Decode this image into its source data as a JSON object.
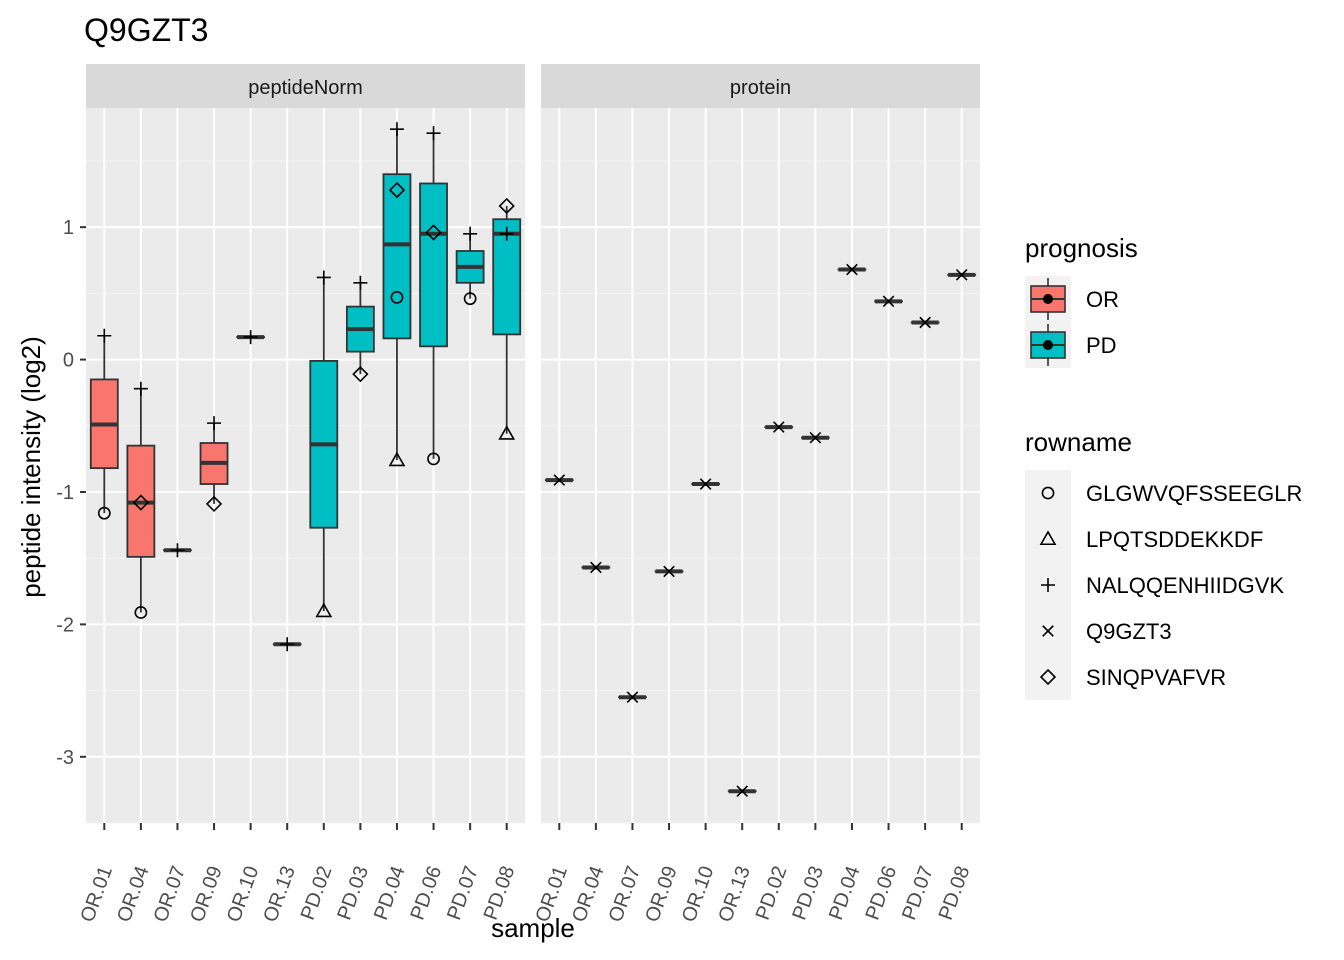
{
  "chart_data": {
    "type": "boxplot",
    "title": "Q9GZT3",
    "xlabel": "sample",
    "ylabel": "peptide intensity (log2)",
    "ylim": [
      -3.5,
      1.75
    ],
    "yticks": [
      -3,
      -2,
      -1,
      0,
      1
    ],
    "grid": true,
    "legend_placement": "right",
    "samples": [
      "OR.01",
      "OR.04",
      "OR.07",
      "OR.09",
      "OR.10",
      "OR.13",
      "PD.02",
      "PD.03",
      "PD.04",
      "PD.06",
      "PD.07",
      "PD.08"
    ],
    "facets": [
      {
        "name": "peptideNorm",
        "boxes": [
          {
            "sample": "OR.01",
            "prognosis": "OR",
            "lower_whisker": -1.16,
            "q1": -0.82,
            "median": -0.49,
            "q3": -0.15,
            "upper_whisker": 0.18
          },
          {
            "sample": "OR.04",
            "prognosis": "OR",
            "lower_whisker": -1.91,
            "q1": -1.49,
            "median": -1.08,
            "q3": -0.65,
            "upper_whisker": -0.22
          },
          {
            "sample": "OR.07",
            "prognosis": "OR",
            "lower_whisker": -1.44,
            "q1": -1.44,
            "median": -1.44,
            "q3": -1.44,
            "upper_whisker": -1.44
          },
          {
            "sample": "OR.09",
            "prognosis": "OR",
            "lower_whisker": -1.09,
            "q1": -0.94,
            "median": -0.78,
            "q3": -0.63,
            "upper_whisker": -0.48
          },
          {
            "sample": "OR.10",
            "prognosis": "OR",
            "lower_whisker": 0.17,
            "q1": 0.17,
            "median": 0.17,
            "q3": 0.17,
            "upper_whisker": 0.17
          },
          {
            "sample": "OR.13",
            "prognosis": "OR",
            "lower_whisker": -2.15,
            "q1": -2.15,
            "median": -2.15,
            "q3": -2.15,
            "upper_whisker": -2.15
          },
          {
            "sample": "PD.02",
            "prognosis": "PD",
            "lower_whisker": -1.9,
            "q1": -1.27,
            "median": -0.64,
            "q3": -0.01,
            "upper_whisker": 0.62
          },
          {
            "sample": "PD.03",
            "prognosis": "PD",
            "lower_whisker": -0.11,
            "q1": 0.06,
            "median": 0.23,
            "q3": 0.4,
            "upper_whisker": 0.58
          },
          {
            "sample": "PD.04",
            "prognosis": "PD",
            "lower_whisker": -0.76,
            "q1": 0.16,
            "median": 0.87,
            "q3": 1.4,
            "upper_whisker": 1.74
          },
          {
            "sample": "PD.06",
            "prognosis": "PD",
            "lower_whisker": -0.75,
            "q1": 0.1,
            "median": 0.95,
            "q3": 1.33,
            "upper_whisker": 1.71
          },
          {
            "sample": "PD.07",
            "prognosis": "PD",
            "lower_whisker": 0.46,
            "q1": 0.58,
            "median": 0.7,
            "q3": 0.82,
            "upper_whisker": 0.95
          },
          {
            "sample": "PD.08",
            "prognosis": "PD",
            "lower_whisker": -0.56,
            "q1": 0.19,
            "median": 0.95,
            "q3": 1.06,
            "upper_whisker": 1.16
          }
        ],
        "points": [
          {
            "sample": "OR.01",
            "rowname": "NALQQENHIIDGVK",
            "y": 0.18
          },
          {
            "sample": "OR.01",
            "rowname": "GLGWVQFSSEEGLR",
            "y": -1.16
          },
          {
            "sample": "OR.04",
            "rowname": "NALQQENHIIDGVK",
            "y": -0.22
          },
          {
            "sample": "OR.04",
            "rowname": "SINQPVAFVR",
            "y": -1.08
          },
          {
            "sample": "OR.04",
            "rowname": "GLGWVQFSSEEGLR",
            "y": -1.91
          },
          {
            "sample": "OR.07",
            "rowname": "NALQQENHIIDGVK",
            "y": -1.44
          },
          {
            "sample": "OR.09",
            "rowname": "NALQQENHIIDGVK",
            "y": -0.48
          },
          {
            "sample": "OR.09",
            "rowname": "SINQPVAFVR",
            "y": -1.09
          },
          {
            "sample": "OR.10",
            "rowname": "NALQQENHIIDGVK",
            "y": 0.17
          },
          {
            "sample": "OR.13",
            "rowname": "NALQQENHIIDGVK",
            "y": -2.15
          },
          {
            "sample": "PD.02",
            "rowname": "NALQQENHIIDGVK",
            "y": 0.62
          },
          {
            "sample": "PD.02",
            "rowname": "LPQTSDDEKKDF",
            "y": -1.9
          },
          {
            "sample": "PD.03",
            "rowname": "NALQQENHIIDGVK",
            "y": 0.58
          },
          {
            "sample": "PD.03",
            "rowname": "SINQPVAFVR",
            "y": -0.11
          },
          {
            "sample": "PD.04",
            "rowname": "NALQQENHIIDGVK",
            "y": 1.74
          },
          {
            "sample": "PD.04",
            "rowname": "SINQPVAFVR",
            "y": 1.28
          },
          {
            "sample": "PD.04",
            "rowname": "GLGWVQFSSEEGLR",
            "y": 0.47
          },
          {
            "sample": "PD.04",
            "rowname": "LPQTSDDEKKDF",
            "y": -0.76
          },
          {
            "sample": "PD.06",
            "rowname": "NALQQENHIIDGVK",
            "y": 1.71
          },
          {
            "sample": "PD.06",
            "rowname": "SINQPVAFVR",
            "y": 0.96
          },
          {
            "sample": "PD.06",
            "rowname": "GLGWVQFSSEEGLR",
            "y": -0.75
          },
          {
            "sample": "PD.07",
            "rowname": "NALQQENHIIDGVK",
            "y": 0.95
          },
          {
            "sample": "PD.07",
            "rowname": "GLGWVQFSSEEGLR",
            "y": 0.46
          },
          {
            "sample": "PD.08",
            "rowname": "SINQPVAFVR",
            "y": 1.16
          },
          {
            "sample": "PD.08",
            "rowname": "NALQQENHIIDGVK",
            "y": 0.95
          },
          {
            "sample": "PD.08",
            "rowname": "LPQTSDDEKKDF",
            "y": -0.56
          }
        ]
      },
      {
        "name": "protein",
        "boxes": [
          {
            "sample": "OR.01",
            "prognosis": "OR",
            "lower_whisker": -0.91,
            "q1": -0.91,
            "median": -0.91,
            "q3": -0.91,
            "upper_whisker": -0.91
          },
          {
            "sample": "OR.04",
            "prognosis": "OR",
            "lower_whisker": -1.57,
            "q1": -1.57,
            "median": -1.57,
            "q3": -1.57,
            "upper_whisker": -1.57
          },
          {
            "sample": "OR.07",
            "prognosis": "OR",
            "lower_whisker": -2.55,
            "q1": -2.55,
            "median": -2.55,
            "q3": -2.55,
            "upper_whisker": -2.55
          },
          {
            "sample": "OR.09",
            "prognosis": "OR",
            "lower_whisker": -1.6,
            "q1": -1.6,
            "median": -1.6,
            "q3": -1.6,
            "upper_whisker": -1.6
          },
          {
            "sample": "OR.10",
            "prognosis": "OR",
            "lower_whisker": -0.94,
            "q1": -0.94,
            "median": -0.94,
            "q3": -0.94,
            "upper_whisker": -0.94
          },
          {
            "sample": "OR.13",
            "prognosis": "OR",
            "lower_whisker": -3.26,
            "q1": -3.26,
            "median": -3.26,
            "q3": -3.26,
            "upper_whisker": -3.26
          },
          {
            "sample": "PD.02",
            "prognosis": "PD",
            "lower_whisker": -0.51,
            "q1": -0.51,
            "median": -0.51,
            "q3": -0.51,
            "upper_whisker": -0.51
          },
          {
            "sample": "PD.03",
            "prognosis": "PD",
            "lower_whisker": -0.59,
            "q1": -0.59,
            "median": -0.59,
            "q3": -0.59,
            "upper_whisker": -0.59
          },
          {
            "sample": "PD.04",
            "prognosis": "PD",
            "lower_whisker": 0.68,
            "q1": 0.68,
            "median": 0.68,
            "q3": 0.68,
            "upper_whisker": 0.68
          },
          {
            "sample": "PD.06",
            "prognosis": "PD",
            "lower_whisker": 0.44,
            "q1": 0.44,
            "median": 0.44,
            "q3": 0.44,
            "upper_whisker": 0.44
          },
          {
            "sample": "PD.07",
            "prognosis": "PD",
            "lower_whisker": 0.28,
            "q1": 0.28,
            "median": 0.28,
            "q3": 0.28,
            "upper_whisker": 0.28
          },
          {
            "sample": "PD.08",
            "prognosis": "PD",
            "lower_whisker": 0.64,
            "q1": 0.64,
            "median": 0.64,
            "q3": 0.64,
            "upper_whisker": 0.64
          }
        ],
        "points": [
          {
            "sample": "OR.01",
            "rowname": "Q9GZT3",
            "y": -0.91
          },
          {
            "sample": "OR.04",
            "rowname": "Q9GZT3",
            "y": -1.57
          },
          {
            "sample": "OR.07",
            "rowname": "Q9GZT3",
            "y": -2.55
          },
          {
            "sample": "OR.09",
            "rowname": "Q9GZT3",
            "y": -1.6
          },
          {
            "sample": "OR.10",
            "rowname": "Q9GZT3",
            "y": -0.94
          },
          {
            "sample": "OR.13",
            "rowname": "Q9GZT3",
            "y": -3.26
          },
          {
            "sample": "PD.02",
            "rowname": "Q9GZT3",
            "y": -0.51
          },
          {
            "sample": "PD.03",
            "rowname": "Q9GZT3",
            "y": -0.59
          },
          {
            "sample": "PD.04",
            "rowname": "Q9GZT3",
            "y": 0.68
          },
          {
            "sample": "PD.06",
            "rowname": "Q9GZT3",
            "y": 0.44
          },
          {
            "sample": "PD.07",
            "rowname": "Q9GZT3",
            "y": 0.28
          },
          {
            "sample": "PD.08",
            "rowname": "Q9GZT3",
            "y": 0.64
          }
        ]
      }
    ],
    "legend": {
      "fill": {
        "title": "prognosis",
        "items": [
          {
            "label": "OR",
            "color": "#f8766d"
          },
          {
            "label": "PD",
            "color": "#00bfc4"
          }
        ]
      },
      "shape": {
        "title": "rowname",
        "items": [
          {
            "label": "GLGWVQFSSEEGLR",
            "shape": "circle"
          },
          {
            "label": "LPQTSDDEKKDF",
            "shape": "triangle"
          },
          {
            "label": "NALQQENHIIDGVK",
            "shape": "plus"
          },
          {
            "label": "Q9GZT3",
            "shape": "cross"
          },
          {
            "label": "SINQPVAFVR",
            "shape": "diamond"
          }
        ]
      }
    }
  }
}
